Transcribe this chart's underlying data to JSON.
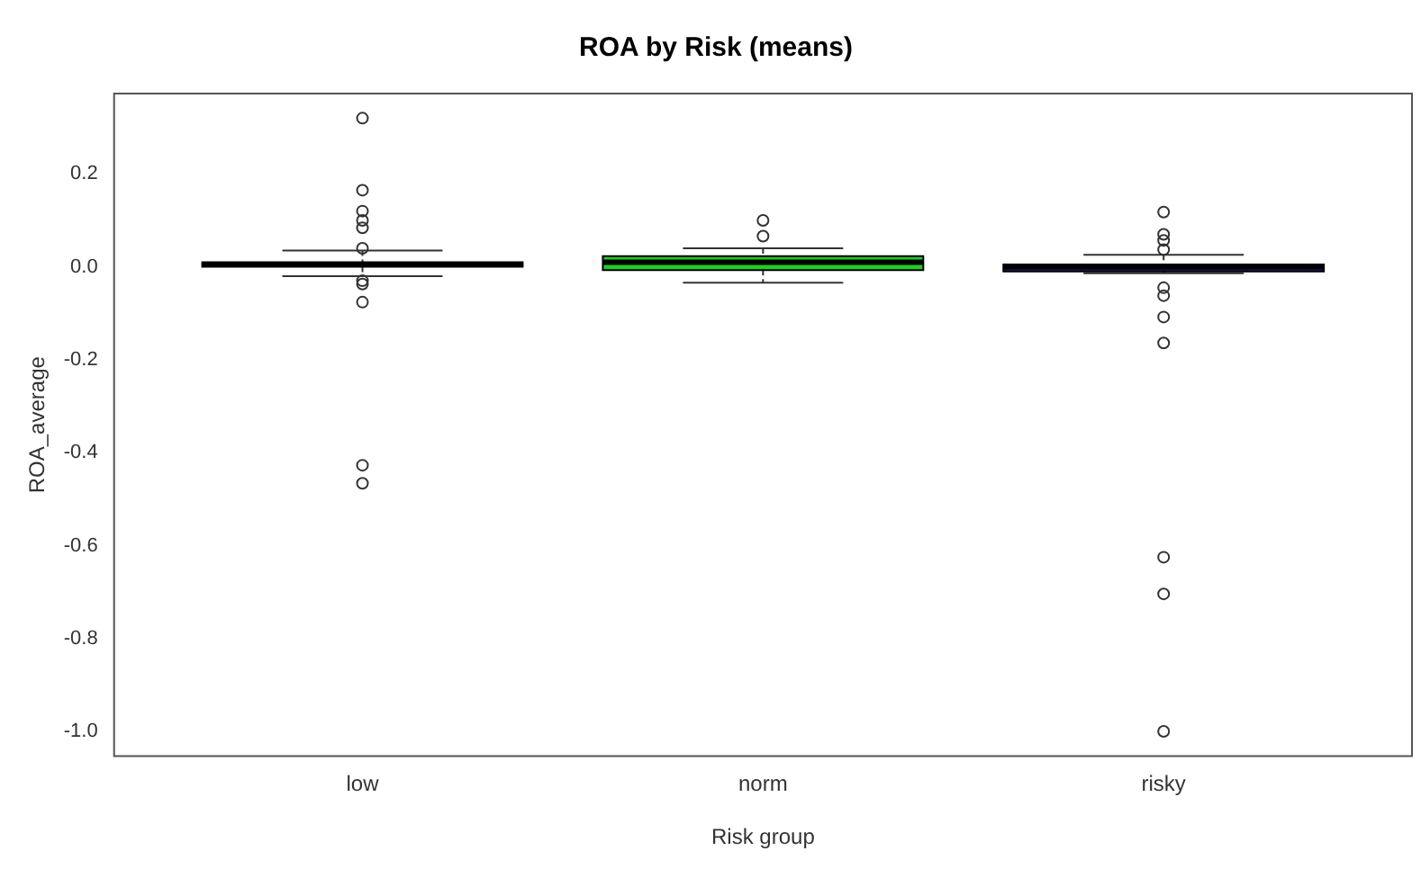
{
  "chart_data": {
    "type": "box",
    "title": "ROA by Risk (means)",
    "xlabel": "Risk group",
    "ylabel": "ROA_average",
    "categories": [
      "low",
      "norm",
      "risky"
    ],
    "colors": [
      "#cc0000",
      "#22cc22",
      "#1a1a5e"
    ],
    "boxes": [
      {
        "low": -0.02,
        "q1": 0.0,
        "median": 0.005,
        "q3": 0.01,
        "high": 0.035,
        "outliers": [
          0.32,
          0.165,
          0.12,
          0.1,
          0.084,
          0.04,
          -0.03,
          -0.037,
          -0.076,
          -0.427,
          -0.466
        ]
      },
      {
        "low": -0.034,
        "q1": -0.007,
        "median": 0.01,
        "q3": 0.023,
        "high": 0.04,
        "outliers": [
          0.1,
          0.066
        ]
      },
      {
        "low": -0.014,
        "q1": -0.01,
        "median": 0.0,
        "q3": 0.005,
        "high": 0.026,
        "outliers": [
          0.118,
          0.07,
          0.057,
          0.037,
          -0.045,
          -0.062,
          -0.108,
          -0.164,
          -0.625,
          -0.704,
          -1.0
        ]
      }
    ],
    "ylim": [
      -1.053,
      0.373
    ],
    "yticks": [
      {
        "value": -1,
        "label": "-1.0"
      },
      {
        "value": -0.8,
        "label": "-0.8"
      },
      {
        "value": -0.6,
        "label": "-0.6"
      },
      {
        "value": -0.4,
        "label": "-0.4"
      },
      {
        "value": -0.2,
        "label": "-0.2"
      },
      {
        "value": 0,
        "label": "0.0"
      },
      {
        "value": 0.2,
        "label": "0.2"
      }
    ]
  }
}
